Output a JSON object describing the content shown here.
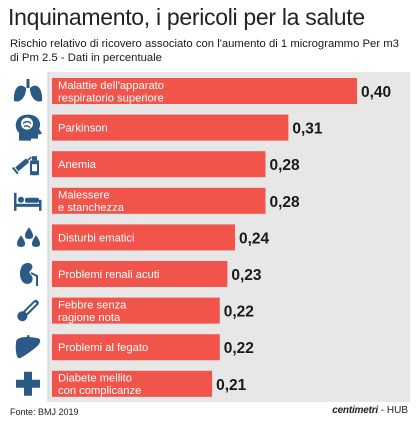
{
  "title": "Inquinamento, i pericoli per la salute",
  "subtitle": "Rischio relativo di ricovero associato con l'aumento di 1 microgrammo Per m3 di Pm 2.5 - Dati in percentuale",
  "source": "Fonte: BMJ 2019",
  "brand": {
    "name": "centimetri",
    "suffix": " - HUB"
  },
  "colors": {
    "bar": "#f0544a",
    "icon": "#2b5a86",
    "text": "#1a1a1a"
  },
  "chart_data": {
    "type": "bar",
    "orientation": "horizontal",
    "categories": [
      [
        "Malattie dell'apparato",
        "respiratorio superiore"
      ],
      [
        "Parkinson"
      ],
      [
        "Anemia"
      ],
      [
        "Malessere",
        "e stanchezza"
      ],
      [
        "Disturbi ematici"
      ],
      [
        "Problemi renali acuti"
      ],
      [
        "Febbre senza",
        "ragione nota"
      ],
      [
        "Problemi al fegato"
      ],
      [
        "Diabete mellito",
        "con complicanze"
      ]
    ],
    "values": [
      0.4,
      0.31,
      0.28,
      0.28,
      0.24,
      0.23,
      0.22,
      0.22,
      0.21
    ],
    "value_labels": [
      "0,40",
      "0,31",
      "0,28",
      "0,28",
      "0,24",
      "0,23",
      "0,22",
      "0,22",
      "0,21"
    ],
    "icons": [
      "lungs-icon",
      "head-brain-icon",
      "syringe-blood-icon",
      "bed-patient-icon",
      "blood-drops-icon",
      "kidney-icon",
      "thermometer-icon",
      "liver-icon",
      "medical-cross-icon"
    ],
    "xlim": [
      0,
      0.4
    ]
  }
}
